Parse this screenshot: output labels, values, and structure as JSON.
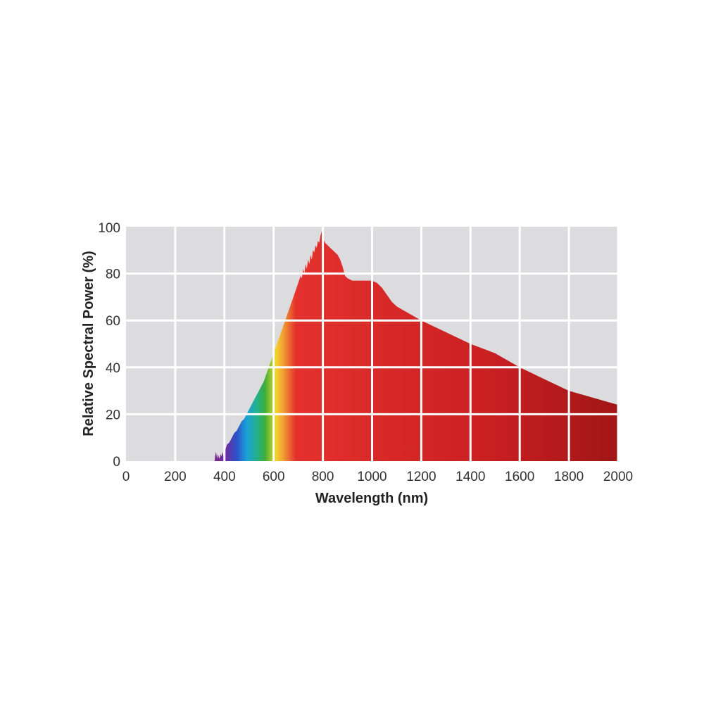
{
  "chart_data": {
    "type": "area",
    "title": "",
    "xlabel": "Wavelength (nm)",
    "ylabel": "Relative Spectral Power (%)",
    "xlim": [
      0,
      2000
    ],
    "ylim": [
      0,
      100
    ],
    "x_ticks": [
      "0",
      "200",
      "400",
      "600",
      "800",
      "1000",
      "1200",
      "1400",
      "1600",
      "1800",
      "2000"
    ],
    "y_ticks": [
      "0",
      "20",
      "40",
      "60",
      "80",
      "100"
    ],
    "grid": true,
    "legend": "none",
    "colors": {
      "plot_background": "#dcdcde",
      "grid": "#ffffff",
      "violet": "#7a2a8c",
      "blue": "#2b52c8",
      "cyan": "#1aa2d9",
      "green": "#3cae3a",
      "yellow": "#f5d329",
      "orange": "#f1a532",
      "red": "#e4312e",
      "dark_red": "#a11616"
    },
    "series": [
      {
        "x": [
          0,
          360,
          362,
          366,
          370,
          373,
          376,
          380,
          384,
          388,
          392,
          396,
          400,
          404,
          410,
          420,
          430,
          440,
          450,
          460,
          470,
          480,
          490,
          500,
          510,
          520,
          530,
          540,
          550,
          560,
          570,
          580,
          590,
          600,
          610,
          620,
          630,
          640,
          650,
          660,
          670,
          680,
          690,
          700,
          710,
          715,
          720,
          725,
          730,
          735,
          740,
          745,
          750,
          755,
          760,
          765,
          770,
          775,
          780,
          785,
          790,
          795,
          800,
          810,
          820,
          830,
          840,
          850,
          860,
          870,
          880,
          890,
          900,
          920,
          940,
          960,
          980,
          1000,
          1020,
          1040,
          1060,
          1080,
          1100,
          1150,
          1200,
          1300,
          1400,
          1500,
          1600,
          1700,
          1800,
          1900,
          2000
        ],
        "y": [
          0,
          0,
          2,
          4,
          1,
          3,
          2,
          1,
          3,
          2,
          4,
          2,
          1,
          5,
          7,
          8,
          10,
          12,
          13,
          15,
          17,
          18,
          20,
          22,
          24,
          26,
          28,
          30,
          32,
          34,
          37,
          40,
          43,
          46,
          49,
          52,
          55,
          58,
          61,
          64,
          67,
          70,
          73,
          76,
          79,
          78,
          82,
          80,
          84,
          82,
          86,
          84,
          88,
          86,
          90,
          89,
          92,
          91,
          94,
          93,
          96,
          98,
          95,
          93,
          92,
          91,
          90,
          89,
          88,
          86,
          83,
          79,
          78,
          77,
          77,
          77,
          77,
          77,
          76,
          74,
          71,
          68,
          66,
          63,
          60,
          55,
          50,
          46,
          40,
          35,
          30,
          27,
          24
        ]
      }
    ]
  }
}
